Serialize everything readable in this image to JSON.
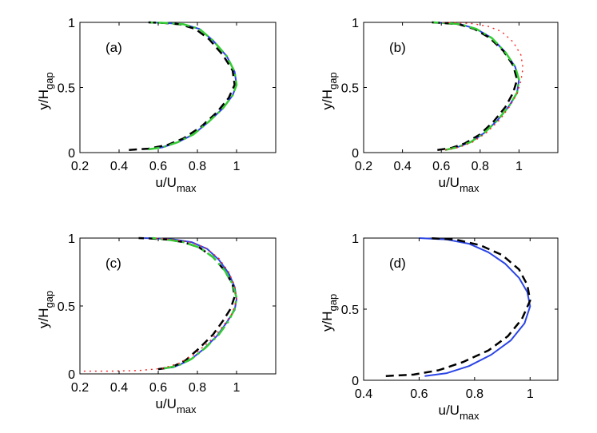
{
  "chart_data": [
    {
      "type": "line",
      "panel_label": "(a)",
      "xlabel": "u/U",
      "xlabel_sub": "max",
      "ylabel": "y/H",
      "ylabel_sub": "gap",
      "xlim": [
        0.2,
        1.2
      ],
      "ylim": [
        0,
        1
      ],
      "xticks": [
        0.2,
        0.4,
        0.6,
        0.8,
        1
      ],
      "xtick_labels": [
        "0.2",
        "0.4",
        "0.6",
        "0.8",
        "1"
      ],
      "yticks": [
        0,
        0.5,
        1
      ],
      "ytick_labels": [
        "0",
        "0.5",
        "1"
      ],
      "series": [
        {
          "name": "solid-blue",
          "color": "#2b45e6",
          "style": "solid",
          "x": [
            0.55,
            0.62,
            0.7,
            0.78,
            0.86,
            0.93,
            0.98,
            1.0,
            0.99,
            0.95,
            0.88,
            0.81,
            0.73,
            0.64,
            0.55
          ],
          "y": [
            0.025,
            0.04,
            0.08,
            0.14,
            0.24,
            0.34,
            0.44,
            0.52,
            0.62,
            0.74,
            0.86,
            0.95,
            0.985,
            0.995,
            1.0
          ]
        },
        {
          "name": "dash-black",
          "color": "#000000",
          "style": "dash",
          "x": [
            0.45,
            0.55,
            0.65,
            0.73,
            0.82,
            0.9,
            0.96,
            0.99,
            0.98,
            0.93,
            0.86,
            0.79,
            0.71,
            0.63,
            0.55
          ],
          "y": [
            0.02,
            0.03,
            0.06,
            0.11,
            0.2,
            0.31,
            0.42,
            0.52,
            0.63,
            0.75,
            0.87,
            0.95,
            0.985,
            0.995,
            1.0
          ]
        },
        {
          "name": "dashdot-green",
          "color": "#33cc33",
          "style": "dashdot",
          "x": [
            0.55,
            0.62,
            0.7,
            0.78,
            0.86,
            0.93,
            0.98,
            1.0,
            0.99,
            0.95,
            0.88,
            0.81,
            0.73,
            0.64,
            0.55
          ],
          "y": [
            0.025,
            0.04,
            0.08,
            0.14,
            0.24,
            0.34,
            0.44,
            0.52,
            0.62,
            0.74,
            0.86,
            0.95,
            0.985,
            0.995,
            1.0
          ]
        }
      ]
    },
    {
      "type": "line",
      "panel_label": "(b)",
      "xlabel": "u/U",
      "xlabel_sub": "max",
      "ylabel": "y/H",
      "ylabel_sub": "gap",
      "xlim": [
        0.2,
        1.2
      ],
      "ylim": [
        0,
        1
      ],
      "xticks": [
        0.2,
        0.4,
        0.6,
        0.8,
        1
      ],
      "xtick_labels": [
        "0.2",
        "0.4",
        "0.6",
        "0.8",
        "1"
      ],
      "yticks": [
        0,
        0.5,
        1
      ],
      "ytick_labels": [
        "0",
        "0.5",
        "1"
      ],
      "series": [
        {
          "name": "solid-blue",
          "color": "#2b45e6",
          "style": "solid",
          "x": [
            0.62,
            0.68,
            0.75,
            0.82,
            0.89,
            0.95,
            0.99,
            1.0,
            0.98,
            0.93,
            0.86,
            0.78,
            0.7,
            0.62,
            0.56
          ],
          "y": [
            0.02,
            0.04,
            0.08,
            0.15,
            0.25,
            0.36,
            0.46,
            0.56,
            0.66,
            0.77,
            0.88,
            0.95,
            0.985,
            0.995,
            1.0
          ]
        },
        {
          "name": "dash-black",
          "color": "#000000",
          "style": "dash",
          "x": [
            0.58,
            0.65,
            0.72,
            0.8,
            0.87,
            0.93,
            0.97,
            0.99,
            0.97,
            0.92,
            0.85,
            0.77,
            0.69,
            0.61,
            0.55
          ],
          "y": [
            0.02,
            0.035,
            0.07,
            0.14,
            0.24,
            0.35,
            0.46,
            0.56,
            0.67,
            0.78,
            0.88,
            0.95,
            0.985,
            0.995,
            1.0
          ]
        },
        {
          "name": "dashdot-green",
          "color": "#33cc33",
          "style": "dashdot",
          "x": [
            0.62,
            0.68,
            0.75,
            0.82,
            0.89,
            0.95,
            0.99,
            1.0,
            0.98,
            0.93,
            0.86,
            0.78,
            0.7,
            0.62,
            0.56
          ],
          "y": [
            0.02,
            0.04,
            0.08,
            0.15,
            0.25,
            0.36,
            0.46,
            0.56,
            0.66,
            0.77,
            0.88,
            0.95,
            0.985,
            0.995,
            1.0
          ]
        },
        {
          "name": "dotted-red",
          "color": "#ff2020",
          "style": "dot",
          "x": [
            0.62,
            0.69,
            0.76,
            0.83,
            0.9,
            0.95,
            0.99,
            1.01,
            1.02,
            1.01,
            0.97,
            0.91,
            0.84,
            0.76,
            0.68,
            0.6
          ],
          "y": [
            0.02,
            0.04,
            0.08,
            0.15,
            0.25,
            0.35,
            0.45,
            0.55,
            0.65,
            0.75,
            0.85,
            0.93,
            0.97,
            0.99,
            0.997,
            1.0
          ]
        }
      ]
    },
    {
      "type": "line",
      "panel_label": "(c)",
      "xlabel": "u/U",
      "xlabel_sub": "max",
      "ylabel": "y/H",
      "ylabel_sub": "gap",
      "xlim": [
        0.2,
        1.2
      ],
      "ylim": [
        0,
        1
      ],
      "xticks": [
        0.2,
        0.4,
        0.6,
        0.8,
        1
      ],
      "xtick_labels": [
        "0.2",
        "0.4",
        "0.6",
        "0.8",
        "1"
      ],
      "yticks": [
        0,
        0.5,
        1
      ],
      "ytick_labels": [
        "0",
        "0.5",
        "1"
      ],
      "series": [
        {
          "name": "solid-blue",
          "color": "#2b45e6",
          "style": "solid",
          "x": [
            0.6,
            0.68,
            0.76,
            0.83,
            0.9,
            0.95,
            0.99,
            1.0,
            0.99,
            0.96,
            0.91,
            0.85,
            0.77,
            0.68,
            0.59,
            0.53
          ],
          "y": [
            0.035,
            0.05,
            0.1,
            0.18,
            0.28,
            0.38,
            0.47,
            0.55,
            0.64,
            0.74,
            0.84,
            0.92,
            0.97,
            0.99,
            0.997,
            1.0
          ]
        },
        {
          "name": "dash-black",
          "color": "#000000",
          "style": "dash",
          "x": [
            0.6,
            0.67,
            0.74,
            0.81,
            0.88,
            0.93,
            0.97,
            0.99,
            0.98,
            0.94,
            0.88,
            0.81,
            0.73,
            0.64,
            0.56,
            0.5
          ],
          "y": [
            0.035,
            0.05,
            0.1,
            0.19,
            0.29,
            0.39,
            0.48,
            0.57,
            0.66,
            0.76,
            0.86,
            0.93,
            0.97,
            0.99,
            0.997,
            1.0
          ]
        },
        {
          "name": "dashdot-green",
          "color": "#33cc33",
          "style": "dashdot",
          "x": [
            0.63,
            0.7,
            0.77,
            0.84,
            0.91,
            0.96,
            0.99,
            1.0,
            0.98,
            0.94,
            0.88,
            0.81,
            0.73,
            0.64,
            0.57
          ],
          "y": [
            0.04,
            0.06,
            0.11,
            0.19,
            0.29,
            0.39,
            0.48,
            0.56,
            0.66,
            0.76,
            0.86,
            0.93,
            0.97,
            0.99,
            1.0
          ]
        },
        {
          "name": "dotted-red",
          "color": "#ff2020",
          "style": "dot",
          "x": [
            0.22,
            0.35,
            0.5,
            0.62,
            0.71,
            0.79,
            0.87,
            0.93,
            0.98,
            1.0,
            0.99,
            0.96,
            0.91,
            0.84,
            0.76,
            0.67,
            0.58
          ],
          "y": [
            0.02,
            0.02,
            0.025,
            0.04,
            0.08,
            0.15,
            0.25,
            0.35,
            0.45,
            0.55,
            0.65,
            0.75,
            0.85,
            0.93,
            0.97,
            0.99,
            1.0
          ]
        }
      ]
    },
    {
      "type": "line",
      "panel_label": "(d)",
      "xlabel": "u/U",
      "xlabel_sub": "max",
      "ylabel": "y/H",
      "ylabel_sub": "gap",
      "xlim": [
        0.4,
        1.1
      ],
      "ylim": [
        0,
        1
      ],
      "xticks": [
        0.4,
        0.6,
        0.8,
        1
      ],
      "xtick_labels": [
        "0.4",
        "0.6",
        "0.8",
        "1"
      ],
      "yticks": [
        0,
        0.5,
        1
      ],
      "ytick_labels": [
        "0",
        "0.5",
        "1"
      ],
      "series": [
        {
          "name": "solid-blue",
          "color": "#2b45e6",
          "style": "solid",
          "x": [
            0.62,
            0.7,
            0.78,
            0.86,
            0.93,
            0.98,
            1.0,
            0.99,
            0.96,
            0.91,
            0.85,
            0.78,
            0.7,
            0.6
          ],
          "y": [
            0.03,
            0.05,
            0.1,
            0.18,
            0.28,
            0.4,
            0.52,
            0.62,
            0.72,
            0.82,
            0.9,
            0.96,
            0.99,
            1.0
          ]
        },
        {
          "name": "dash-black",
          "color": "#000000",
          "style": "dash",
          "x": [
            0.48,
            0.58,
            0.67,
            0.76,
            0.85,
            0.92,
            0.97,
            1.0,
            0.99,
            0.96,
            0.9,
            0.82,
            0.73,
            0.63
          ],
          "y": [
            0.03,
            0.04,
            0.07,
            0.13,
            0.21,
            0.31,
            0.43,
            0.56,
            0.67,
            0.78,
            0.88,
            0.95,
            0.99,
            1.0
          ]
        }
      ]
    }
  ]
}
